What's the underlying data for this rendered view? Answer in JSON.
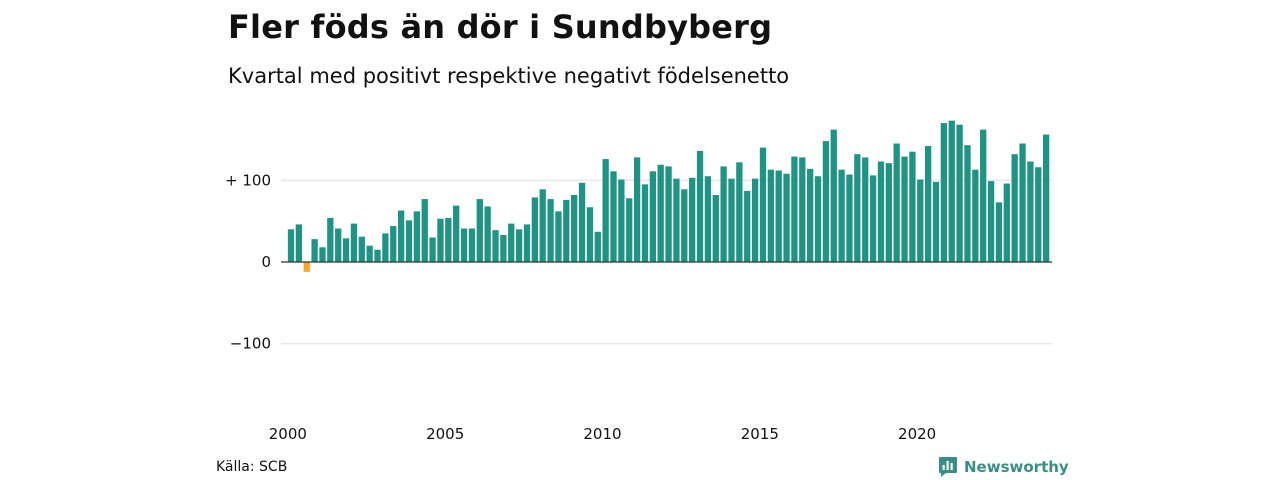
{
  "title": "Fler föds än dör i Sundbyberg",
  "subtitle": "Kvartal med positivt respektive negativt födelsenetto",
  "source": "Källa: SCB",
  "brand": {
    "name": "Newsworthy",
    "icon": "newsworthy-logo-icon",
    "color": "#3a8f84"
  },
  "colors": {
    "positive": "#1f9384",
    "negative": "#f5a623",
    "grid": "#dddddd",
    "zero": "#333333"
  },
  "chart_data": {
    "type": "bar",
    "title": "Fler föds än dör i Sundbyberg",
    "subtitle": "Kvartal med positivt respektive negativt födelsenetto",
    "xlabel": "",
    "ylabel": "",
    "ylim": [
      -130,
      180
    ],
    "y_ticks": [
      {
        "value": 100,
        "label": "+ 100"
      },
      {
        "value": 0,
        "label": "0"
      },
      {
        "value": -100,
        "label": "−100"
      }
    ],
    "x_ticks": [
      "2000",
      "2005",
      "2010",
      "2015",
      "2020"
    ],
    "grid": true,
    "start_year": 2000,
    "frequency": "quarter",
    "values": [
      40,
      46,
      -12,
      28,
      18,
      54,
      41,
      29,
      47,
      31,
      20,
      15,
      35,
      44,
      63,
      51,
      62,
      77,
      30,
      53,
      54,
      69,
      41,
      41,
      77,
      68,
      39,
      33,
      47,
      40,
      46,
      79,
      89,
      77,
      62,
      76,
      82,
      97,
      67,
      37,
      126,
      111,
      101,
      78,
      128,
      95,
      111,
      119,
      117,
      102,
      89,
      103,
      136,
      105,
      82,
      117,
      102,
      122,
      87,
      102,
      140,
      113,
      112,
      108,
      129,
      128,
      114,
      105,
      148,
      162,
      113,
      107,
      132,
      128,
      106,
      123,
      121,
      145,
      129,
      135,
      101,
      142,
      98,
      170,
      173,
      168,
      143,
      113,
      162,
      99,
      73,
      96,
      132,
      145,
      123,
      116,
      156
    ]
  }
}
